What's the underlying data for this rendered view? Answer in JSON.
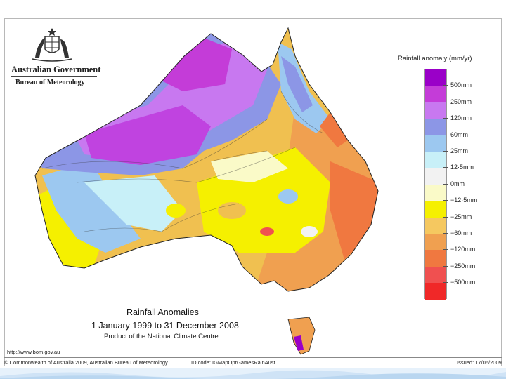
{
  "header": {
    "government": "Australian Government",
    "bureau": "Bureau of Meteorology",
    "crest_icon": "commonwealth-coat-of-arms-icon"
  },
  "legend": {
    "title": "Rainfall anomaly (mm/yr)",
    "items": [
      {
        "label": "500mm",
        "color": "#9a00c8"
      },
      {
        "label": "250mm",
        "color": "#c43cd8"
      },
      {
        "label": "120mm",
        "color": "#c878f0"
      },
      {
        "label": "60mm",
        "color": "#8c96e6"
      },
      {
        "label": "25mm",
        "color": "#9cc8f0"
      },
      {
        "label": "12·5mm",
        "color": "#c8f0f8"
      },
      {
        "label": "0mm",
        "color": "#f2f2f2"
      },
      {
        "label": "−12·5mm",
        "color": "#fafac8"
      },
      {
        "label": "−25mm",
        "color": "#f5f000"
      },
      {
        "label": "−60mm",
        "color": "#f5c860"
      },
      {
        "label": "−120mm",
        "color": "#f0a050"
      },
      {
        "label": "−250mm",
        "color": "#f07840"
      },
      {
        "label": "−500mm",
        "color": "#f05050"
      },
      {
        "label": "",
        "color": "#f02828"
      }
    ]
  },
  "map": {
    "title": "Rainfall Anomalies",
    "period": "1 January 1999 to 31 December 2008",
    "product": "Product of the National Climate Centre"
  },
  "footer": {
    "url": "http://www.bom.gov.au",
    "copyright": "© Commonwealth of Australia 2009, Australian Bureau of Meteorology",
    "id_code": "ID code: IGMapOprGamesRainAust",
    "issued": "Issued: 17/06/2009"
  }
}
